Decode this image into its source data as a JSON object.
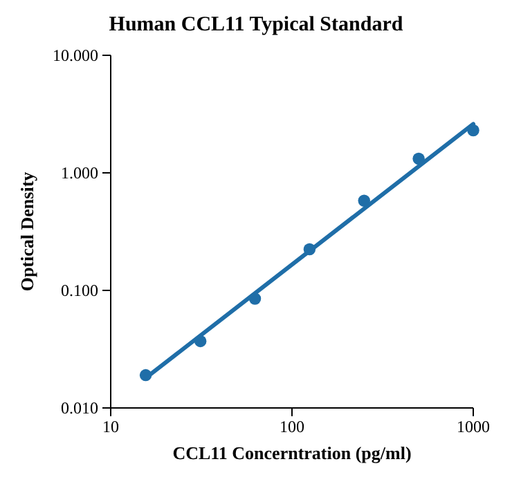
{
  "chart_data": {
    "type": "scatter",
    "title": "Human CCL11 Typical Standard",
    "xlabel": "CCL11 Concerntration (pg/ml)",
    "ylabel": "Optical Density",
    "log": "xy",
    "grid": false,
    "xlim": [
      10,
      1000
    ],
    "ylim": [
      0.01,
      10
    ],
    "xticks": [
      10,
      100,
      1000
    ],
    "yticks": [
      {
        "value": 0.01,
        "label": "0.010"
      },
      {
        "value": 0.1,
        "label": "0.100"
      },
      {
        "value": 1,
        "label": "1.000"
      },
      {
        "value": 10,
        "label": "10.000"
      }
    ],
    "series": [
      {
        "type": "line",
        "color": "#1f6ea8",
        "x": [
          15.6,
          1000
        ],
        "values": [
          0.018,
          2.6
        ],
        "line_style": "solid",
        "marker": "none"
      },
      {
        "color": "#1f6ea8",
        "x": [
          15.6,
          31.25,
          62.5,
          125,
          250,
          500,
          1000
        ],
        "values": [
          0.019,
          0.037,
          0.085,
          0.224,
          0.58,
          1.32,
          2.3
        ],
        "marker": "circle"
      }
    ]
  }
}
